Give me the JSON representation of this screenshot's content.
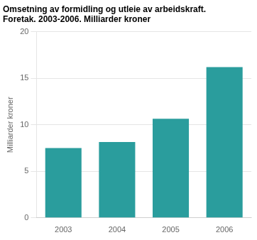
{
  "chart_data": {
    "type": "bar",
    "title": "Omsetning av formidling og utleie av arbeidskraft.",
    "subtitle": "Foretak. 2003-2006. Milliarder kroner",
    "ylabel": "Milliarder kroner",
    "categories": [
      "2003",
      "2004",
      "2005",
      "2006"
    ],
    "values": [
      7.5,
      8.15,
      10.65,
      16.2
    ],
    "color": "#2a9d9d",
    "ylim": [
      0,
      20
    ],
    "yticks": [
      0,
      5,
      10,
      15,
      20
    ],
    "grid": true
  }
}
